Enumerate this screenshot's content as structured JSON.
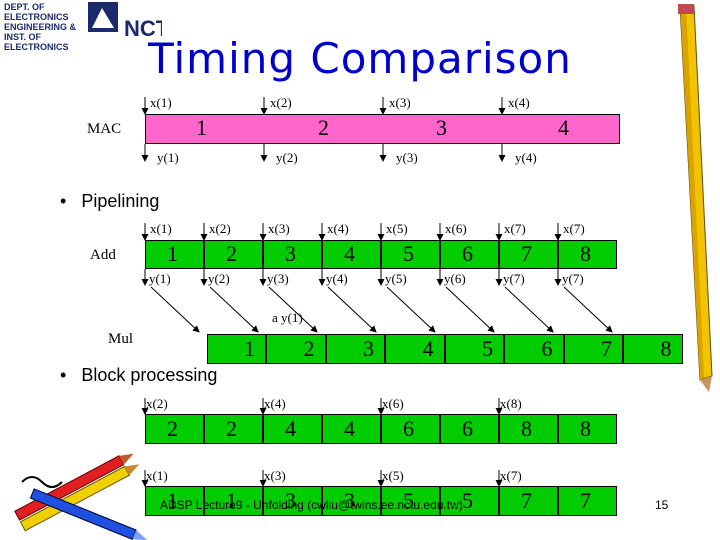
{
  "slide": {
    "title": "Timing Comparison",
    "logo_text_lines": [
      "DEPT. OF ELECTRONICS",
      "ENGINEERING &",
      "INST. OF ELECTRONICS"
    ],
    "logo_mark": "NCTU",
    "page_number": "15",
    "footer": "ADSP Lecture9 - Unfolding (cwliu@twins.ee.nctu.edu.tw)"
  },
  "mac": {
    "label": "MAC",
    "inputs": [
      "x(1)",
      "x(2)",
      "x(3)",
      "x(4)"
    ],
    "segments": [
      "1",
      "2",
      "3",
      "4"
    ],
    "outputs": [
      "y(1)",
      "y(2)",
      "y(3)",
      "y(4)"
    ]
  },
  "pipelining": {
    "bullet": "Pipelining",
    "add_label": "Add",
    "add_inputs": [
      "x(1)",
      "x(2)",
      "x(3)",
      "x(4)",
      "x(5)",
      "x(6)",
      "x(7)",
      "x(7)"
    ],
    "add_cells": [
      "1",
      "2",
      "3",
      "4",
      "5",
      "6",
      "7",
      "8"
    ],
    "add_outputs": [
      "y(1)",
      "y(2)",
      "y(3)",
      "y(4)",
      "y(5)",
      "y(6)",
      "y(7)",
      "y(7)"
    ],
    "mul_label": "Mul",
    "mul_annotation": "a y(1)",
    "mul_cells": [
      "1",
      "2",
      "3",
      "4",
      "5",
      "6",
      "7",
      "8"
    ]
  },
  "block": {
    "bullet": "Block processing",
    "top_inputs": [
      "x(2)",
      "x(4)",
      "x(6)",
      "x(8)"
    ],
    "top_cells": [
      "2",
      "2",
      "4",
      "4",
      "6",
      "6",
      "8",
      "8"
    ],
    "bottom_inputs": [
      "x(1)",
      "x(3)",
      "x(5)",
      "x(7)"
    ],
    "bottom_cells": [
      "1",
      "1",
      "3",
      "3",
      "5",
      "5",
      "7",
      "7"
    ]
  },
  "colors": {
    "title": "#0000cc",
    "mac_bar": "#ff66cc",
    "green": "#00cc00"
  },
  "icons": [
    "ncu-logo-icon",
    "pencil-decoration-icon",
    "crayons-decoration-icon"
  ]
}
